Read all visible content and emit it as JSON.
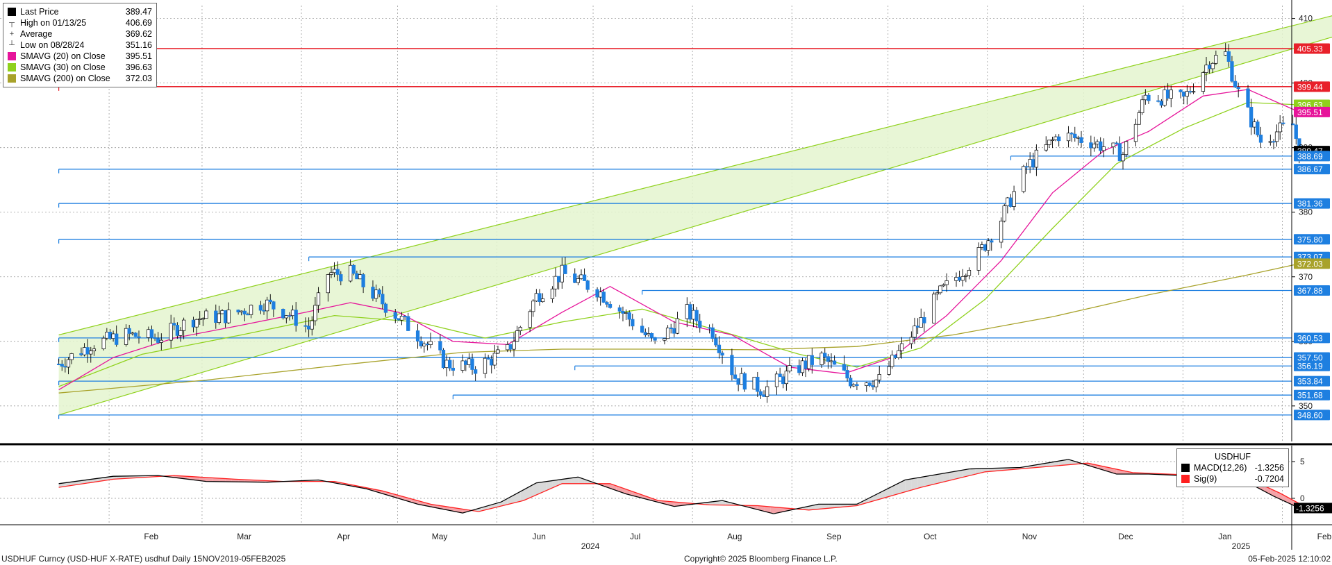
{
  "legend": {
    "items": [
      {
        "name": "Last Price",
        "value": "389.47",
        "color": "#000000",
        "glyph": ""
      },
      {
        "name": "High on 01/13/25",
        "value": "406.69",
        "color": "#555555",
        "glyph": "┬"
      },
      {
        "name": "Average",
        "value": "369.62",
        "color": "#555555",
        "glyph": "+"
      },
      {
        "name": "Low on 08/28/24",
        "value": "351.16",
        "color": "#555555",
        "glyph": "┴"
      },
      {
        "name": "SMAVG (20)  on Close",
        "value": "395.51",
        "color": "#e6149a",
        "glyph": ""
      },
      {
        "name": "SMAVG (30)  on Close",
        "value": "396.63",
        "color": "#8fd11c",
        "glyph": ""
      },
      {
        "name": "SMAVG (200)  on Close",
        "value": "372.03",
        "color": "#a8a22a",
        "glyph": ""
      }
    ]
  },
  "macd_legend": {
    "title": "USDHUF",
    "items": [
      {
        "name": "MACD(12,26)",
        "value": "-1.3256",
        "color": "#000000"
      },
      {
        "name": "Sig(9)",
        "value": "-0.7204",
        "color": "#ff2020"
      }
    ]
  },
  "footer": {
    "left": "USDHUF Curncy (USD-HUF X-RATE)  usdhuf  Daily 15NOV2019-05FEB2025",
    "center": "Copyright© 2025 Bloomberg Finance L.P.",
    "right": "05-Feb-2025 12:10:02"
  },
  "chart_data": [
    {
      "type": "candlestick",
      "title": "",
      "xlabel": "",
      "ylabel": "",
      "x_ticks": [
        "Feb",
        "Mar",
        "Apr",
        "May",
        "Jun",
        "Jul",
        "Aug",
        "Sep",
        "Oct",
        "Nov",
        "Dec",
        "Jan",
        "Feb"
      ],
      "year_labels": [
        "2024",
        "2025"
      ],
      "y_ticks": [
        350,
        360,
        370,
        380,
        390,
        400,
        410
      ],
      "ylim": [
        344.5,
        412
      ],
      "price_badges": [
        {
          "label": "405.33",
          "value": 405.33,
          "color": "#e8202a"
        },
        {
          "label": "399.44",
          "value": 399.44,
          "color": "#e8202a"
        },
        {
          "label": "396.63",
          "value": 396.63,
          "color": "#8fd11c"
        },
        {
          "label": "395.51",
          "value": 395.51,
          "color": "#e6149a"
        },
        {
          "label": "389.47",
          "value": 389.47,
          "color": "#000000"
        },
        {
          "label": "388.69",
          "value": 388.69,
          "color": "#1e7fe0"
        },
        {
          "label": "386.67",
          "value": 386.67,
          "color": "#1e7fe0"
        },
        {
          "label": "381.36",
          "value": 381.36,
          "color": "#1e7fe0"
        },
        {
          "label": "375.80",
          "value": 375.8,
          "color": "#1e7fe0"
        },
        {
          "label": "373.07",
          "value": 373.07,
          "color": "#1e7fe0"
        },
        {
          "label": "372.03",
          "value": 372.03,
          "color": "#a8a22a"
        },
        {
          "label": "367.88",
          "value": 367.88,
          "color": "#1e7fe0"
        },
        {
          "label": "360.53",
          "value": 360.53,
          "color": "#1e7fe0"
        },
        {
          "label": "357.50",
          "value": 357.5,
          "color": "#1e7fe0"
        },
        {
          "label": "356.19",
          "value": 356.19,
          "color": "#1e7fe0"
        },
        {
          "label": "353.84",
          "value": 353.84,
          "color": "#1e7fe0"
        },
        {
          "label": "351.68",
          "value": 351.68,
          "color": "#1e7fe0"
        },
        {
          "label": "348.60",
          "value": 348.6,
          "color": "#1e7fe0"
        }
      ],
      "horizontal_levels": [
        {
          "value": 405.33,
          "color": "#e8202a",
          "from_date": "2024-01-15"
        },
        {
          "value": 399.44,
          "color": "#e8202a",
          "from_date": "2024-01-15"
        },
        {
          "value": 388.69,
          "color": "#1e7fe0",
          "from_date": "2024-11-07"
        },
        {
          "value": 386.67,
          "color": "#1e7fe0",
          "from_date": "2024-01-15"
        },
        {
          "value": 381.36,
          "color": "#1e7fe0",
          "from_date": "2024-01-15"
        },
        {
          "value": 375.8,
          "color": "#1e7fe0",
          "from_date": "2024-01-15"
        },
        {
          "value": 373.07,
          "color": "#1e7fe0",
          "from_date": "2024-04-02"
        },
        {
          "value": 367.88,
          "color": "#1e7fe0",
          "from_date": "2024-07-15"
        },
        {
          "value": 360.53,
          "color": "#1e7fe0",
          "from_date": "2024-01-15"
        },
        {
          "value": 357.5,
          "color": "#1e7fe0",
          "from_date": "2024-01-15"
        },
        {
          "value": 356.19,
          "color": "#1e7fe0",
          "from_date": "2024-06-24"
        },
        {
          "value": 353.84,
          "color": "#1e7fe0",
          "from_date": "2024-01-15"
        },
        {
          "value": 351.68,
          "color": "#1e7fe0",
          "from_date": "2024-05-17"
        },
        {
          "value": 348.6,
          "color": "#1e7fe0",
          "from_date": "2024-01-15"
        }
      ],
      "trend_channel": {
        "upper": [
          {
            "date": "2024-01-15",
            "value": 361.0
          },
          {
            "date": "2025-02-28",
            "value": 412.0
          }
        ],
        "lower": [
          {
            "date": "2024-01-15",
            "value": 348.6
          },
          {
            "date": "2025-02-28",
            "value": 409.0
          }
        ],
        "fill": "#e4f5cf",
        "line_color": "#8fd11c"
      },
      "close_series": [
        {
          "date": "2024-01-15",
          "value": 356.5
        },
        {
          "date": "2024-01-25",
          "value": 359.5
        },
        {
          "date": "2024-02-05",
          "value": 361.0
        },
        {
          "date": "2024-02-15",
          "value": 360.5
        },
        {
          "date": "2024-02-26",
          "value": 363.5
        },
        {
          "date": "2024-03-08",
          "value": 364.0
        },
        {
          "date": "2024-03-19",
          "value": 366.0
        },
        {
          "date": "2024-03-26",
          "value": 364.5
        },
        {
          "date": "2024-04-02",
          "value": 362.0
        },
        {
          "date": "2024-04-08",
          "value": 370.5
        },
        {
          "date": "2024-04-15",
          "value": 370.5
        },
        {
          "date": "2024-04-25",
          "value": 366.0
        },
        {
          "date": "2024-05-06",
          "value": 361.0
        },
        {
          "date": "2024-05-15",
          "value": 356.5
        },
        {
          "date": "2024-05-24",
          "value": 356.0
        },
        {
          "date": "2024-06-03",
          "value": 358.5
        },
        {
          "date": "2024-06-12",
          "value": 367.0
        },
        {
          "date": "2024-06-20",
          "value": 370.5
        },
        {
          "date": "2024-07-01",
          "value": 368.0
        },
        {
          "date": "2024-07-10",
          "value": 364.0
        },
        {
          "date": "2024-07-19",
          "value": 359.5
        },
        {
          "date": "2024-07-29",
          "value": 364.5
        },
        {
          "date": "2024-08-06",
          "value": 361.5
        },
        {
          "date": "2024-08-13",
          "value": 354.5
        },
        {
          "date": "2024-08-22",
          "value": 352.5
        },
        {
          "date": "2024-09-02",
          "value": 356.0
        },
        {
          "date": "2024-09-09",
          "value": 357.5
        },
        {
          "date": "2024-09-18",
          "value": 354.0
        },
        {
          "date": "2024-09-27",
          "value": 354.0
        },
        {
          "date": "2024-10-07",
          "value": 361.0
        },
        {
          "date": "2024-10-16",
          "value": 367.5
        },
        {
          "date": "2024-10-28",
          "value": 373.5
        },
        {
          "date": "2024-11-04",
          "value": 379.0
        },
        {
          "date": "2024-11-12",
          "value": 387.0
        },
        {
          "date": "2024-11-22",
          "value": 392.0
        },
        {
          "date": "2024-12-02",
          "value": 391.0
        },
        {
          "date": "2024-12-12",
          "value": 389.0
        },
        {
          "date": "2024-12-19",
          "value": 398.0
        },
        {
          "date": "2024-12-31",
          "value": 397.5
        },
        {
          "date": "2025-01-08",
          "value": 403.5
        },
        {
          "date": "2025-01-13",
          "value": 404.5
        },
        {
          "date": "2025-01-17",
          "value": 398.5
        },
        {
          "date": "2025-01-24",
          "value": 391.0
        },
        {
          "date": "2025-01-29",
          "value": 392.5
        },
        {
          "date": "2025-02-03",
          "value": 393.5
        },
        {
          "date": "2025-02-05",
          "value": 389.5
        }
      ],
      "sma20_series": [
        {
          "date": "2024-01-15",
          "value": 352.5
        },
        {
          "date": "2024-02-01",
          "value": 357.5
        },
        {
          "date": "2024-02-20",
          "value": 360.5
        },
        {
          "date": "2024-03-12",
          "value": 362.5
        },
        {
          "date": "2024-04-01",
          "value": 364.5
        },
        {
          "date": "2024-04-15",
          "value": 366.0
        },
        {
          "date": "2024-04-30",
          "value": 364.5
        },
        {
          "date": "2024-05-17",
          "value": 360.0
        },
        {
          "date": "2024-06-03",
          "value": 359.5
        },
        {
          "date": "2024-06-20",
          "value": 364.5
        },
        {
          "date": "2024-07-05",
          "value": 368.5
        },
        {
          "date": "2024-07-25",
          "value": 363.0
        },
        {
          "date": "2024-08-12",
          "value": 361.0
        },
        {
          "date": "2024-08-30",
          "value": 356.0
        },
        {
          "date": "2024-09-16",
          "value": 355.0
        },
        {
          "date": "2024-10-01",
          "value": 357.5
        },
        {
          "date": "2024-10-18",
          "value": 364.0
        },
        {
          "date": "2024-11-04",
          "value": 372.5
        },
        {
          "date": "2024-11-20",
          "value": 383.0
        },
        {
          "date": "2024-12-06",
          "value": 389.5
        },
        {
          "date": "2024-12-20",
          "value": 392.5
        },
        {
          "date": "2025-01-06",
          "value": 398.0
        },
        {
          "date": "2025-01-20",
          "value": 399.0
        },
        {
          "date": "2025-02-05",
          "value": 395.51
        }
      ],
      "sma30_series": [
        {
          "date": "2024-01-15",
          "value": 353.0
        },
        {
          "date": "2024-02-10",
          "value": 358.0
        },
        {
          "date": "2024-03-12",
          "value": 361.0
        },
        {
          "date": "2024-04-10",
          "value": 364.0
        },
        {
          "date": "2024-05-06",
          "value": 363.0
        },
        {
          "date": "2024-05-27",
          "value": 360.5
        },
        {
          "date": "2024-06-20",
          "value": 363.0
        },
        {
          "date": "2024-07-15",
          "value": 365.0
        },
        {
          "date": "2024-08-09",
          "value": 361.5
        },
        {
          "date": "2024-09-02",
          "value": 358.0
        },
        {
          "date": "2024-09-20",
          "value": 356.0
        },
        {
          "date": "2024-10-10",
          "value": 359.0
        },
        {
          "date": "2024-10-30",
          "value": 366.5
        },
        {
          "date": "2024-11-20",
          "value": 377.5
        },
        {
          "date": "2024-12-10",
          "value": 387.5
        },
        {
          "date": "2024-12-31",
          "value": 393.0
        },
        {
          "date": "2025-01-20",
          "value": 397.0
        },
        {
          "date": "2025-02-05",
          "value": 396.63
        }
      ],
      "sma200_series": [
        {
          "date": "2024-01-15",
          "value": 352.0
        },
        {
          "date": "2024-03-01",
          "value": 354.0
        },
        {
          "date": "2024-04-15",
          "value": 356.5
        },
        {
          "date": "2024-05-20",
          "value": 358.3
        },
        {
          "date": "2024-06-20",
          "value": 358.8
        },
        {
          "date": "2024-07-20",
          "value": 358.8
        },
        {
          "date": "2024-08-20",
          "value": 358.7
        },
        {
          "date": "2024-09-20",
          "value": 359.2
        },
        {
          "date": "2024-10-20",
          "value": 361.0
        },
        {
          "date": "2024-11-20",
          "value": 363.8
        },
        {
          "date": "2024-12-20",
          "value": 367.2
        },
        {
          "date": "2025-01-20",
          "value": 370.3
        },
        {
          "date": "2025-02-05",
          "value": 372.03
        }
      ],
      "up_color": "#ffffff",
      "down_color": "#1e7fe0"
    },
    {
      "type": "line",
      "title": "",
      "xlabel": "",
      "ylabel": "",
      "y_ticks": [
        0,
        5
      ],
      "ylim": [
        -3.6,
        6.8
      ],
      "last_badge": {
        "label": "-1.3256",
        "value": -1.3256,
        "color": "#000000"
      },
      "series": [
        {
          "name": "MACD(12,26)",
          "color": "#000000",
          "points": [
            {
              "date": "2024-01-15",
              "value": 2.0
            },
            {
              "date": "2024-02-01",
              "value": 3.0
            },
            {
              "date": "2024-02-15",
              "value": 3.1
            },
            {
              "date": "2024-03-01",
              "value": 2.3
            },
            {
              "date": "2024-03-20",
              "value": 2.2
            },
            {
              "date": "2024-04-05",
              "value": 2.5
            },
            {
              "date": "2024-04-20",
              "value": 1.3
            },
            {
              "date": "2024-05-06",
              "value": -0.8
            },
            {
              "date": "2024-05-20",
              "value": -2.0
            },
            {
              "date": "2024-06-01",
              "value": -0.5
            },
            {
              "date": "2024-06-12",
              "value": 2.1
            },
            {
              "date": "2024-06-25",
              "value": 2.9
            },
            {
              "date": "2024-07-10",
              "value": 0.6
            },
            {
              "date": "2024-07-25",
              "value": -1.1
            },
            {
              "date": "2024-08-09",
              "value": -0.3
            },
            {
              "date": "2024-08-25",
              "value": -2.1
            },
            {
              "date": "2024-09-08",
              "value": -0.8
            },
            {
              "date": "2024-09-20",
              "value": -0.8
            },
            {
              "date": "2024-10-05",
              "value": 2.5
            },
            {
              "date": "2024-10-25",
              "value": 4.0
            },
            {
              "date": "2024-11-10",
              "value": 4.2
            },
            {
              "date": "2024-11-25",
              "value": 5.3
            },
            {
              "date": "2024-12-10",
              "value": 3.3
            },
            {
              "date": "2024-12-20",
              "value": 3.3
            },
            {
              "date": "2025-01-05",
              "value": 3.0
            },
            {
              "date": "2025-01-15",
              "value": 3.3
            },
            {
              "date": "2025-01-28",
              "value": 0.3
            },
            {
              "date": "2025-02-05",
              "value": -1.3256
            }
          ]
        },
        {
          "name": "Sig(9)",
          "color": "#ff2020",
          "points": [
            {
              "date": "2024-01-15",
              "value": 1.5
            },
            {
              "date": "2024-02-01",
              "value": 2.6
            },
            {
              "date": "2024-02-20",
              "value": 3.1
            },
            {
              "date": "2024-03-10",
              "value": 2.6
            },
            {
              "date": "2024-03-25",
              "value": 2.3
            },
            {
              "date": "2024-04-10",
              "value": 2.3
            },
            {
              "date": "2024-04-25",
              "value": 1.0
            },
            {
              "date": "2024-05-10",
              "value": -0.8
            },
            {
              "date": "2024-05-25",
              "value": -1.8
            },
            {
              "date": "2024-06-08",
              "value": -0.3
            },
            {
              "date": "2024-06-20",
              "value": 2.0
            },
            {
              "date": "2024-07-05",
              "value": 2.0
            },
            {
              "date": "2024-07-20",
              "value": -0.3
            },
            {
              "date": "2024-08-05",
              "value": -0.9
            },
            {
              "date": "2024-08-20",
              "value": -1.0
            },
            {
              "date": "2024-09-05",
              "value": -1.6
            },
            {
              "date": "2024-09-20",
              "value": -1.0
            },
            {
              "date": "2024-10-10",
              "value": 1.5
            },
            {
              "date": "2024-10-30",
              "value": 3.6
            },
            {
              "date": "2024-11-15",
              "value": 4.2
            },
            {
              "date": "2024-12-01",
              "value": 4.8
            },
            {
              "date": "2024-12-15",
              "value": 3.5
            },
            {
              "date": "2025-01-01",
              "value": 3.2
            },
            {
              "date": "2025-01-18",
              "value": 3.1
            },
            {
              "date": "2025-01-30",
              "value": 0.7
            },
            {
              "date": "2025-02-05",
              "value": -0.7204
            }
          ]
        }
      ],
      "fill_above_color": "#d9d9d9",
      "fill_below_color": "#f4a3a8"
    }
  ]
}
